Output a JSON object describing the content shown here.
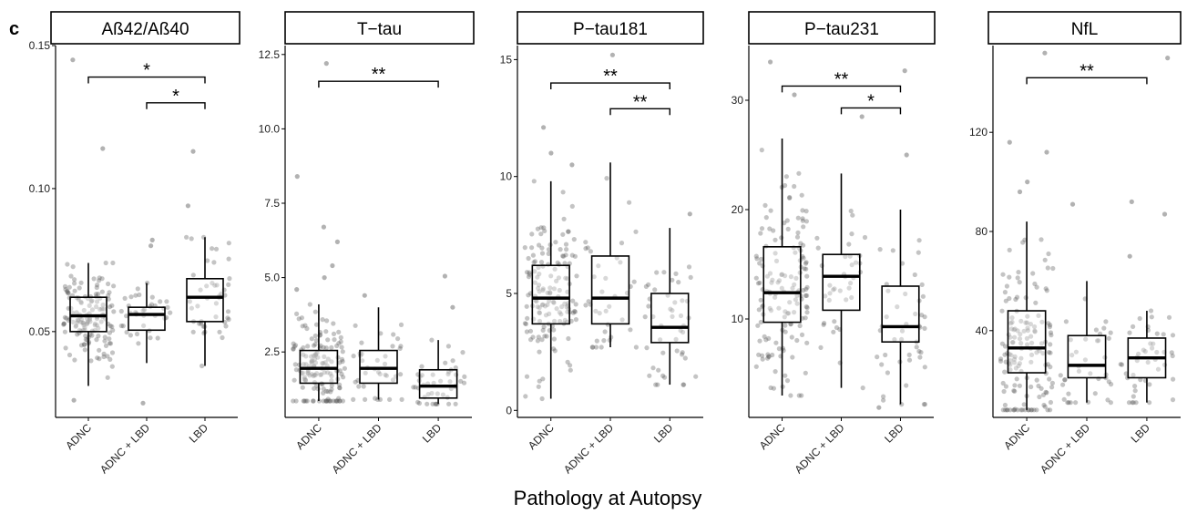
{
  "panel_letter": "c",
  "chart_data": {
    "type": "box",
    "xlabel": "Pathology at Autopsy",
    "categories": [
      "ADNC",
      "ADNC + LBD",
      "LBD"
    ],
    "panels": [
      {
        "title": "Aß42/Aß40",
        "ylim": [
          0.02,
          0.15
        ],
        "yticks": [
          0.05,
          0.1,
          0.15
        ],
        "ytick_labels": [
          "0.05",
          "0.10",
          "0.15"
        ],
        "boxes": [
          {
            "category": "ADNC",
            "whisker_low": 0.031,
            "q1": 0.05,
            "median": 0.0555,
            "q3": 0.062,
            "whisker_high": 0.074,
            "outliers": [
              0.145,
              0.114,
              0.026
            ]
          },
          {
            "category": "ADNC + LBD",
            "whisker_low": 0.039,
            "q1": 0.0505,
            "median": 0.056,
            "q3": 0.0585,
            "whisker_high": 0.067,
            "outliers": [
              0.082,
              0.08,
              0.025
            ]
          },
          {
            "category": "LBD",
            "whisker_low": 0.038,
            "q1": 0.0535,
            "median": 0.062,
            "q3": 0.0685,
            "whisker_high": 0.083,
            "outliers": [
              0.113,
              0.094
            ]
          }
        ],
        "comparisons": [
          {
            "from": "ADNC",
            "to": "LBD",
            "y": 0.139,
            "label": "*"
          },
          {
            "from": "ADNC + LBD",
            "to": "LBD",
            "y": 0.13,
            "label": "*"
          }
        ]
      },
      {
        "title": "T−tau",
        "ylim": [
          0.3,
          12.8
        ],
        "yticks": [
          2.5,
          5.0,
          7.5,
          10.0,
          12.5
        ],
        "ytick_labels": [
          "2.5",
          "5.0",
          "7.5",
          "10.0",
          "12.5"
        ],
        "boxes": [
          {
            "category": "ADNC",
            "whisker_low": 0.85,
            "q1": 1.45,
            "median": 1.95,
            "q3": 2.55,
            "whisker_high": 4.1,
            "outliers": [
              12.2,
              8.4,
              6.7,
              6.2,
              5.4,
              5.0,
              4.6
            ]
          },
          {
            "category": "ADNC + LBD",
            "whisker_low": 0.9,
            "q1": 1.45,
            "median": 1.95,
            "q3": 2.55,
            "whisker_high": 4.0,
            "outliers": [
              4.4
            ]
          },
          {
            "category": "LBD",
            "whisker_low": 0.75,
            "q1": 0.95,
            "median": 1.35,
            "q3": 1.9,
            "whisker_high": 2.9,
            "outliers": [
              5.05,
              4.0
            ]
          }
        ],
        "comparisons": [
          {
            "from": "ADNC",
            "to": "LBD",
            "y": 11.6,
            "label": "**"
          }
        ]
      },
      {
        "title": "P−tau181",
        "ylim": [
          -0.3,
          15.6
        ],
        "yticks": [
          0,
          5,
          10,
          15
        ],
        "ytick_labels": [
          "0",
          "5",
          "10",
          "15"
        ],
        "boxes": [
          {
            "category": "ADNC",
            "whisker_low": 0.5,
            "q1": 3.7,
            "median": 4.8,
            "q3": 6.2,
            "whisker_high": 9.8,
            "outliers": [
              12.1,
              11.0,
              10.5
            ]
          },
          {
            "category": "ADNC + LBD",
            "whisker_low": 2.7,
            "q1": 3.7,
            "median": 4.8,
            "q3": 6.6,
            "whisker_high": 10.6,
            "outliers": [
              15.2
            ]
          },
          {
            "category": "LBD",
            "whisker_low": 1.1,
            "q1": 2.9,
            "median": 3.55,
            "q3": 5.0,
            "whisker_high": 7.8,
            "outliers": [
              8.4
            ]
          }
        ],
        "comparisons": [
          {
            "from": "ADNC",
            "to": "LBD",
            "y": 14.0,
            "label": "**"
          },
          {
            "from": "ADNC + LBD",
            "to": "LBD",
            "y": 12.9,
            "label": "**"
          }
        ]
      },
      {
        "title": "P−tau231",
        "ylim": [
          1.0,
          35.0
        ],
        "yticks": [
          10,
          20,
          30
        ],
        "ytick_labels": [
          "10",
          "20",
          "30"
        ],
        "boxes": [
          {
            "category": "ADNC",
            "whisker_low": 3.0,
            "q1": 9.7,
            "median": 12.4,
            "q3": 16.6,
            "whisker_high": 26.5,
            "outliers": [
              33.5,
              30.5
            ]
          },
          {
            "category": "ADNC + LBD",
            "whisker_low": 3.7,
            "q1": 10.8,
            "median": 13.9,
            "q3": 15.9,
            "whisker_high": 23.3,
            "outliers": [
              28.5
            ]
          },
          {
            "category": "LBD",
            "whisker_low": 2.2,
            "q1": 7.9,
            "median": 9.3,
            "q3": 13.0,
            "whisker_high": 20.0,
            "outliers": [
              32.7,
              25.0,
              1.9
            ]
          }
        ],
        "comparisons": [
          {
            "from": "ADNC",
            "to": "LBD",
            "y": 31.3,
            "label": "**"
          },
          {
            "from": "ADNC + LBD",
            "to": "LBD",
            "y": 29.3,
            "label": "*"
          }
        ]
      },
      {
        "title": "NfL",
        "ylim": [
          5,
          155
        ],
        "yticks": [
          40,
          80,
          120
        ],
        "ytick_labels": [
          "40",
          "80",
          "120"
        ],
        "boxes": [
          {
            "category": "ADNC",
            "whisker_low": 8,
            "q1": 23,
            "median": 33,
            "q3": 48,
            "whisker_high": 84,
            "outliers": [
              152,
              116,
              112,
              100,
              96
            ]
          },
          {
            "category": "ADNC + LBD",
            "whisker_low": 11,
            "q1": 21,
            "median": 26,
            "q3": 38,
            "whisker_high": 60,
            "outliers": [
              91
            ]
          },
          {
            "category": "LBD",
            "whisker_low": 11,
            "q1": 21,
            "median": 29,
            "q3": 37,
            "whisker_high": 48,
            "outliers": [
              150,
              92,
              87,
              70
            ]
          }
        ],
        "comparisons": [
          {
            "from": "ADNC",
            "to": "LBD",
            "y": 142,
            "label": "**"
          }
        ]
      }
    ]
  }
}
